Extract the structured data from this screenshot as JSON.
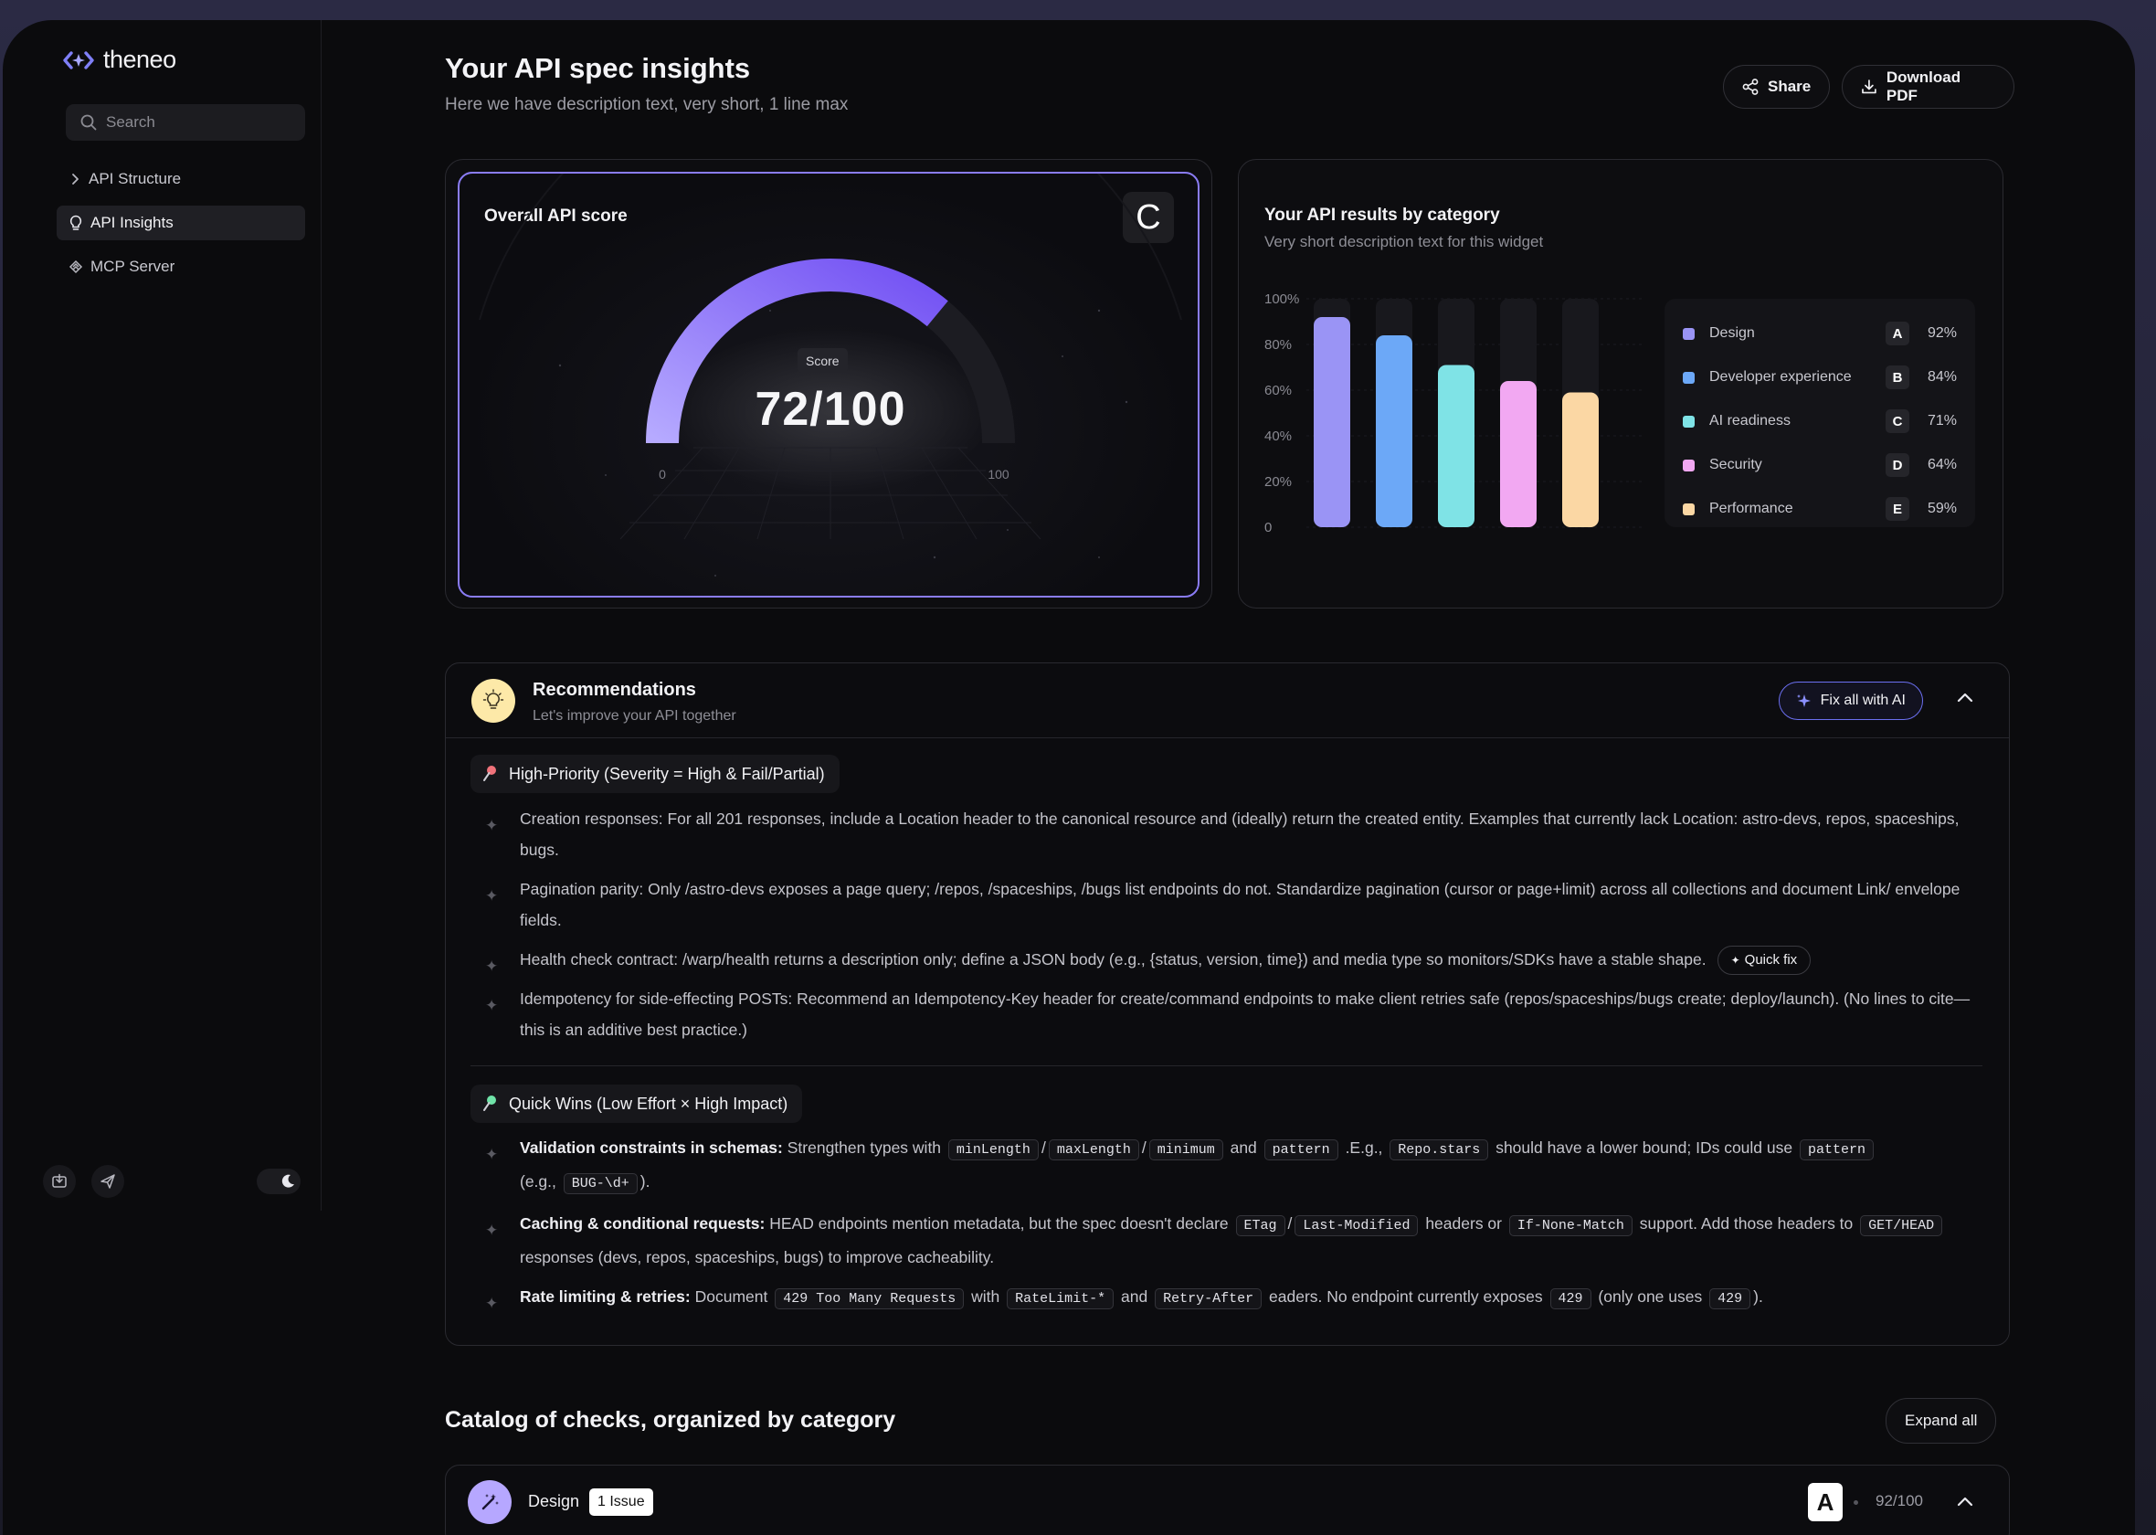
{
  "app": {
    "name": "theneo"
  },
  "search": {
    "placeholder": "Search"
  },
  "nav": [
    {
      "label": "API Structure"
    },
    {
      "label": "API Insights"
    },
    {
      "label": "MCP Server"
    }
  ],
  "header": {
    "title": "Your API spec insights",
    "subtitle": "Here we have description text, very short, 1 line max",
    "share_label": "Share",
    "download_label": "Download PDF"
  },
  "score_card": {
    "title": "Overall API score",
    "grade": "C",
    "badge": "Score",
    "score_text": "72/100",
    "score": 72,
    "min_label": "0",
    "max_label": "100",
    "accent": "#7b5cf5"
  },
  "results_card": {
    "title": "Your API results by category",
    "description": "Very short description text for this widget"
  },
  "chart_data": {
    "type": "bar",
    "categories": [
      "Design",
      "Developer experience",
      "AI readiness",
      "Security",
      "Performance"
    ],
    "values": [
      92,
      84,
      71,
      64,
      59
    ],
    "grades": [
      "A",
      "B",
      "C",
      "D",
      "E"
    ],
    "percent_labels": [
      "92%",
      "84%",
      "71%",
      "64%",
      "59%"
    ],
    "colors": [
      "#9a94f5",
      "#6ca8f7",
      "#7fe3e6",
      "#f2a8f2",
      "#fbd7a4"
    ],
    "ylim": [
      0,
      100
    ],
    "yticks": [
      "100%",
      "80%",
      "60%",
      "40%",
      "20%",
      "0"
    ],
    "legend": "right",
    "grid": true
  },
  "recommendations": {
    "title": "Recommendations",
    "subtitle": "Let's improve your API together",
    "fix_all_label": "Fix all with AI",
    "high_priority": {
      "title": "High-Priority (Severity = High & Fail/Partial)",
      "items": [
        {
          "text": "Creation responses: For all 201 responses, include a Location header to the canonical resource and (ideally) return the created entity. Examples that currently lack Location: astro-devs, repos, spaceships, bugs."
        },
        {
          "text": "Pagination parity: Only /astro-devs exposes a page query; /repos, /spaceships, /bugs list endpoints do not. Standardize pagination (cursor or page+limit) across all collections and document Link/ envelope fields."
        },
        {
          "text": "Health check contract: /warp/health returns a description only; define a JSON body (e.g., {status, version, time}) and media type so monitors/SDKs have a stable shape.",
          "action": "Quick fix"
        },
        {
          "text": "Idempotency for side-effecting POSTs: Recommend an Idempotency-Key header for create/command endpoints to make client retries safe (repos/spaceships/bugs create; deploy/launch). (No lines to cite—this is an additive best practice.)"
        }
      ]
    },
    "quick_wins": {
      "title": "Quick Wins (Low Effort × High Impact)",
      "items": [
        {
          "label": "Validation constraints in schemas:",
          "t1": "Strengthen types with",
          "c1": "minLength",
          "s1": "/",
          "c2": "maxLength",
          "s2": "/",
          "c3": "minimum",
          "t2": "and",
          "c4": "pattern",
          "t3": ".E.g.,",
          "c5": "Repo.stars",
          "t4": "should have a lower bound; IDs could use",
          "c6": "pattern",
          "t5": "(e.g.,",
          "c7": "BUG-\\d+",
          "t6": ")."
        },
        {
          "label": "Caching & conditional requests:",
          "t1": "HEAD endpoints mention metadata, but the spec doesn't declare",
          "c1": "ETag",
          "s1": "/",
          "c2": "Last-Modified",
          "t2": "headers or",
          "c3": "If-None-Match",
          "t3": "support. Add those headers to",
          "c4": "GET/HEAD",
          "t4": "responses (devs, repos, spaceships, bugs) to improve cacheability."
        },
        {
          "label": "Rate limiting & retries:",
          "t1": "Document",
          "c1": "429 Too Many Requests",
          "t2": "with",
          "c2": "RateLimit-*",
          "t3": "and",
          "c3": "Retry-After",
          "t4": "eaders. No endpoint currently exposes",
          "c4": "429",
          "t5": "(only one uses",
          "c5": "429",
          "t6": ")."
        }
      ]
    }
  },
  "catalog": {
    "title": "Catalog of checks, organized by category",
    "expand_all_label": "Expand all",
    "rows": [
      {
        "name": "Design",
        "issues": "1 Issue",
        "grade": "A",
        "score_text": "92/100"
      }
    ]
  },
  "icons": [
    "logo-icon",
    "search-icon",
    "chevron-right-icon",
    "bulb-icon",
    "mcp-icon",
    "import-icon",
    "send-icon",
    "moon-icon",
    "share-icon",
    "download-icon",
    "sparkle-icon",
    "chevron-up-icon",
    "pin-icon",
    "magic-wand-icon"
  ]
}
